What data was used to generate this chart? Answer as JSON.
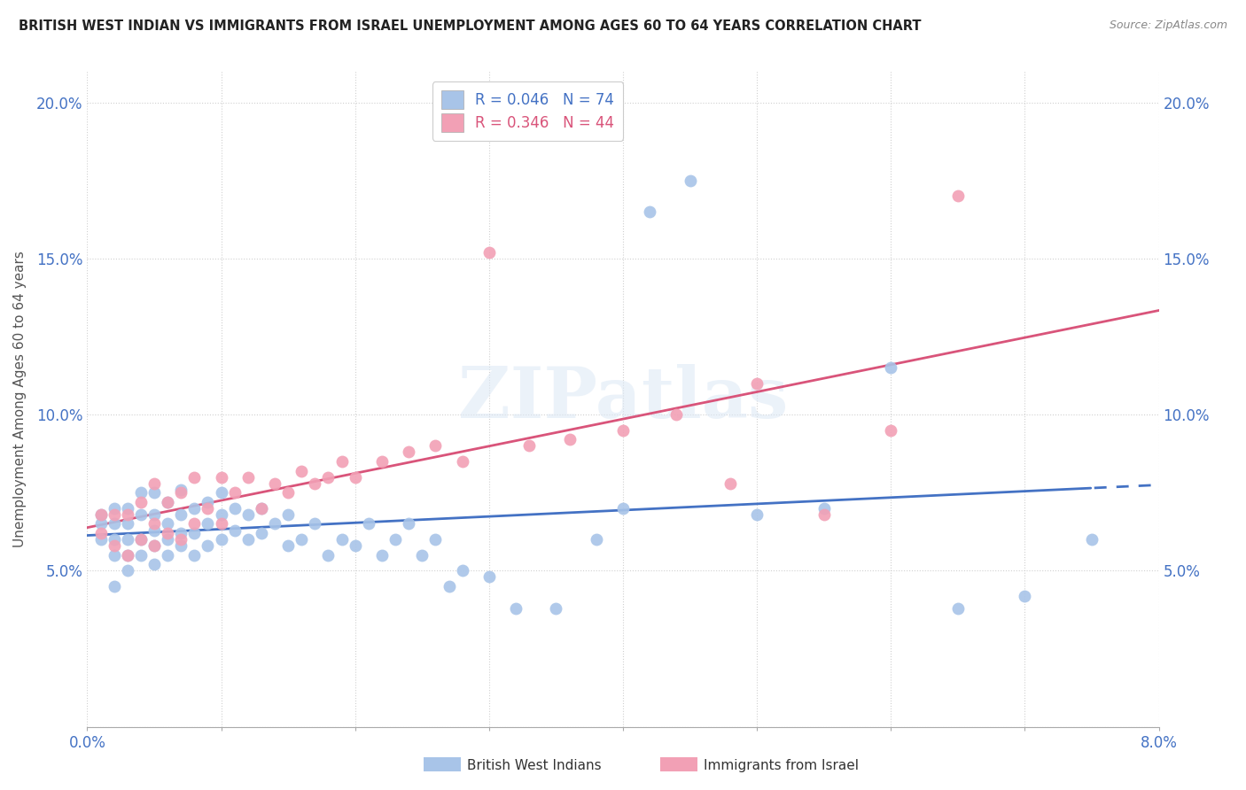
{
  "title": "BRITISH WEST INDIAN VS IMMIGRANTS FROM ISRAEL UNEMPLOYMENT AMONG AGES 60 TO 64 YEARS CORRELATION CHART",
  "source": "Source: ZipAtlas.com",
  "ylabel": "Unemployment Among Ages 60 to 64 years",
  "xmin": 0.0,
  "xmax": 0.08,
  "ymin": 0.0,
  "ymax": 0.21,
  "blue_color": "#a8c4e8",
  "pink_color": "#f2a0b5",
  "blue_line_color": "#4472c4",
  "pink_line_color": "#d9547a",
  "legend_R1": "0.046",
  "legend_N1": "74",
  "legend_R2": "0.346",
  "legend_N2": "44",
  "watermark_text": "ZIPatlas",
  "blue_scatter_x": [
    0.001,
    0.001,
    0.001,
    0.002,
    0.002,
    0.002,
    0.002,
    0.002,
    0.003,
    0.003,
    0.003,
    0.003,
    0.003,
    0.004,
    0.004,
    0.004,
    0.004,
    0.005,
    0.005,
    0.005,
    0.005,
    0.005,
    0.006,
    0.006,
    0.006,
    0.006,
    0.007,
    0.007,
    0.007,
    0.007,
    0.008,
    0.008,
    0.008,
    0.009,
    0.009,
    0.009,
    0.01,
    0.01,
    0.01,
    0.011,
    0.011,
    0.012,
    0.012,
    0.013,
    0.013,
    0.014,
    0.015,
    0.015,
    0.016,
    0.017,
    0.018,
    0.019,
    0.02,
    0.021,
    0.022,
    0.023,
    0.024,
    0.025,
    0.026,
    0.027,
    0.028,
    0.03,
    0.032,
    0.035,
    0.038,
    0.04,
    0.042,
    0.045,
    0.05,
    0.055,
    0.06,
    0.065,
    0.07,
    0.075
  ],
  "blue_scatter_y": [
    0.06,
    0.065,
    0.068,
    0.045,
    0.055,
    0.06,
    0.065,
    0.07,
    0.05,
    0.055,
    0.06,
    0.065,
    0.07,
    0.055,
    0.06,
    0.068,
    0.075,
    0.052,
    0.058,
    0.063,
    0.068,
    0.075,
    0.055,
    0.06,
    0.065,
    0.072,
    0.058,
    0.062,
    0.068,
    0.076,
    0.055,
    0.062,
    0.07,
    0.058,
    0.065,
    0.072,
    0.06,
    0.068,
    0.075,
    0.063,
    0.07,
    0.06,
    0.068,
    0.062,
    0.07,
    0.065,
    0.058,
    0.068,
    0.06,
    0.065,
    0.055,
    0.06,
    0.058,
    0.065,
    0.055,
    0.06,
    0.065,
    0.055,
    0.06,
    0.045,
    0.05,
    0.048,
    0.038,
    0.038,
    0.06,
    0.07,
    0.165,
    0.175,
    0.068,
    0.07,
    0.115,
    0.038,
    0.042,
    0.06
  ],
  "pink_scatter_x": [
    0.001,
    0.001,
    0.002,
    0.002,
    0.003,
    0.003,
    0.004,
    0.004,
    0.005,
    0.005,
    0.005,
    0.006,
    0.006,
    0.007,
    0.007,
    0.008,
    0.008,
    0.009,
    0.01,
    0.01,
    0.011,
    0.012,
    0.013,
    0.014,
    0.015,
    0.016,
    0.017,
    0.018,
    0.019,
    0.02,
    0.022,
    0.024,
    0.026,
    0.028,
    0.03,
    0.033,
    0.036,
    0.04,
    0.044,
    0.048,
    0.05,
    0.055,
    0.06,
    0.065
  ],
  "pink_scatter_y": [
    0.062,
    0.068,
    0.058,
    0.068,
    0.055,
    0.068,
    0.06,
    0.072,
    0.058,
    0.065,
    0.078,
    0.062,
    0.072,
    0.06,
    0.075,
    0.065,
    0.08,
    0.07,
    0.065,
    0.08,
    0.075,
    0.08,
    0.07,
    0.078,
    0.075,
    0.082,
    0.078,
    0.08,
    0.085,
    0.08,
    0.085,
    0.088,
    0.09,
    0.085,
    0.152,
    0.09,
    0.092,
    0.095,
    0.1,
    0.078,
    0.11,
    0.068,
    0.095,
    0.17
  ]
}
